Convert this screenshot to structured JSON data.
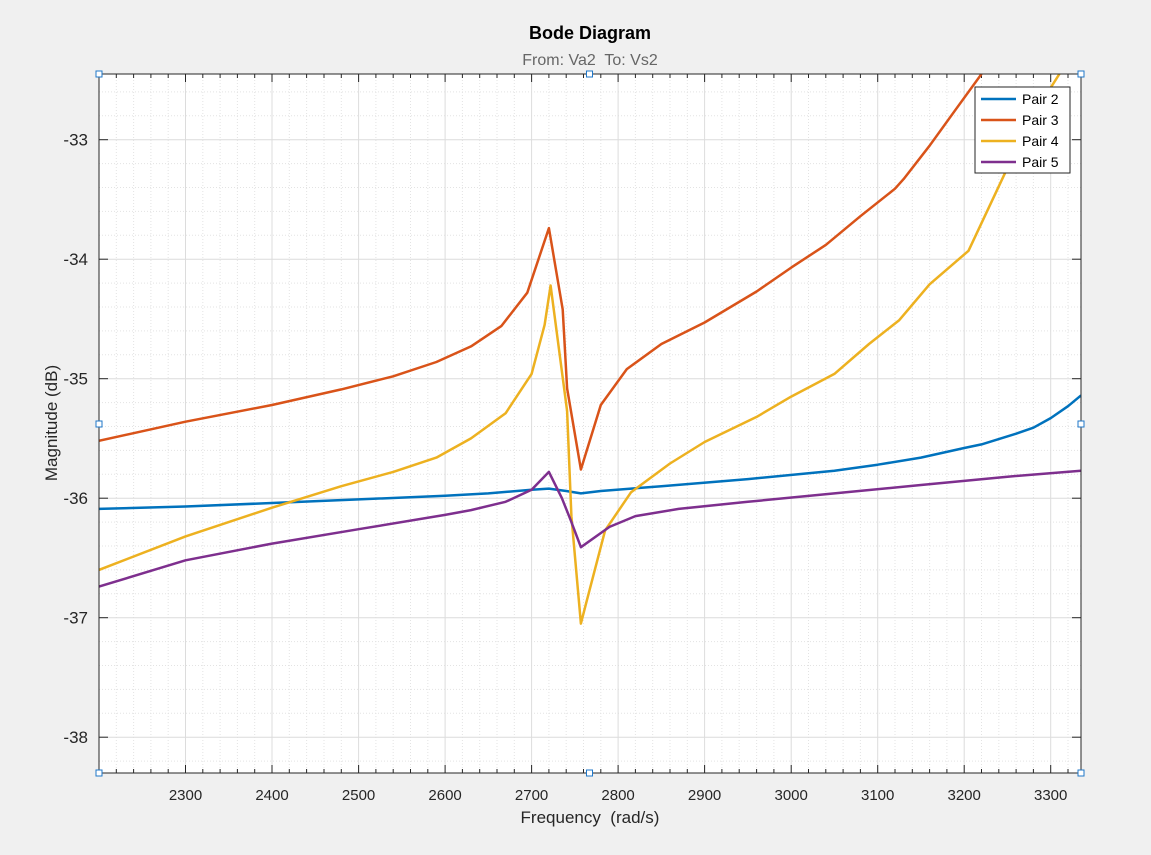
{
  "chart_data": {
    "type": "line",
    "title": "Bode Diagram",
    "subtitle": "From: Va2  To: Vs2",
    "xlabel": "Frequency  (rad/s)",
    "ylabel": "Magnitude (dB)",
    "xlim": [
      2200,
      3335
    ],
    "ylim": [
      -38.3,
      -32.45
    ],
    "xticks": [
      2300,
      2400,
      2500,
      2600,
      2700,
      2800,
      2900,
      3000,
      3100,
      3200,
      3300
    ],
    "yticks": [
      -38,
      -37,
      -36,
      -35,
      -34,
      -33
    ],
    "grid": true,
    "legend_position": "top-right",
    "series": [
      {
        "name": "Pair 2",
        "color": "#0072BD",
        "points": [
          [
            2200,
            -36.09
          ],
          [
            2300,
            -36.07
          ],
          [
            2400,
            -36.04
          ],
          [
            2500,
            -36.01
          ],
          [
            2600,
            -35.98
          ],
          [
            2650,
            -35.96
          ],
          [
            2700,
            -35.93
          ],
          [
            2720,
            -35.92
          ],
          [
            2740,
            -35.94
          ],
          [
            2757,
            -35.96
          ],
          [
            2780,
            -35.94
          ],
          [
            2850,
            -35.9
          ],
          [
            2950,
            -35.84
          ],
          [
            3050,
            -35.77
          ],
          [
            3100,
            -35.72
          ],
          [
            3150,
            -35.66
          ],
          [
            3200,
            -35.58
          ],
          [
            3220,
            -35.55
          ],
          [
            3260,
            -35.46
          ],
          [
            3280,
            -35.41
          ],
          [
            3300,
            -35.33
          ],
          [
            3320,
            -35.23
          ],
          [
            3335,
            -35.14
          ]
        ]
      },
      {
        "name": "Pair 3",
        "color": "#D95319",
        "points": [
          [
            2200,
            -35.52
          ],
          [
            2300,
            -35.36
          ],
          [
            2400,
            -35.22
          ],
          [
            2480,
            -35.09
          ],
          [
            2540,
            -34.98
          ],
          [
            2590,
            -34.86
          ],
          [
            2630,
            -34.73
          ],
          [
            2665,
            -34.56
          ],
          [
            2695,
            -34.28
          ],
          [
            2720,
            -33.74
          ],
          [
            2736,
            -34.42
          ],
          [
            2741,
            -35.08
          ],
          [
            2757,
            -35.76
          ],
          [
            2780,
            -35.22
          ],
          [
            2810,
            -34.92
          ],
          [
            2850,
            -34.71
          ],
          [
            2900,
            -34.53
          ],
          [
            2960,
            -34.27
          ],
          [
            3000,
            -34.07
          ],
          [
            3040,
            -33.88
          ],
          [
            3080,
            -33.64
          ],
          [
            3120,
            -33.41
          ],
          [
            3130,
            -33.33
          ],
          [
            3160,
            -33.05
          ],
          [
            3190,
            -32.75
          ],
          [
            3220,
            -32.45
          ]
        ]
      },
      {
        "name": "Pair 4",
        "color": "#EDB120",
        "points": [
          [
            2200,
            -36.6
          ],
          [
            2300,
            -36.32
          ],
          [
            2400,
            -36.08
          ],
          [
            2480,
            -35.9
          ],
          [
            2540,
            -35.78
          ],
          [
            2590,
            -35.66
          ],
          [
            2630,
            -35.5
          ],
          [
            2670,
            -35.29
          ],
          [
            2700,
            -34.96
          ],
          [
            2715,
            -34.55
          ],
          [
            2722,
            -34.22
          ],
          [
            2741,
            -35.27
          ],
          [
            2746,
            -36.15
          ],
          [
            2757,
            -37.05
          ],
          [
            2763,
            -36.88
          ],
          [
            2785,
            -36.27
          ],
          [
            2815,
            -35.95
          ],
          [
            2860,
            -35.71
          ],
          [
            2900,
            -35.53
          ],
          [
            2960,
            -35.32
          ],
          [
            3000,
            -35.15
          ],
          [
            3050,
            -34.96
          ],
          [
            3090,
            -34.71
          ],
          [
            3125,
            -34.51
          ],
          [
            3160,
            -34.21
          ],
          [
            3205,
            -33.93
          ],
          [
            3240,
            -33.39
          ],
          [
            3275,
            -32.85
          ],
          [
            3310,
            -32.45
          ]
        ]
      },
      {
        "name": "Pair 5",
        "color": "#7E2F8E",
        "points": [
          [
            2200,
            -36.74
          ],
          [
            2300,
            -36.52
          ],
          [
            2400,
            -36.38
          ],
          [
            2500,
            -36.26
          ],
          [
            2600,
            -36.14
          ],
          [
            2630,
            -36.1
          ],
          [
            2670,
            -36.03
          ],
          [
            2700,
            -35.93
          ],
          [
            2720,
            -35.78
          ],
          [
            2735,
            -36.0
          ],
          [
            2745,
            -36.18
          ],
          [
            2757,
            -36.41
          ],
          [
            2790,
            -36.24
          ],
          [
            2820,
            -36.15
          ],
          [
            2870,
            -36.09
          ],
          [
            2950,
            -36.03
          ],
          [
            3050,
            -35.96
          ],
          [
            3150,
            -35.89
          ],
          [
            3250,
            -35.82
          ],
          [
            3335,
            -35.77
          ]
        ]
      }
    ]
  }
}
